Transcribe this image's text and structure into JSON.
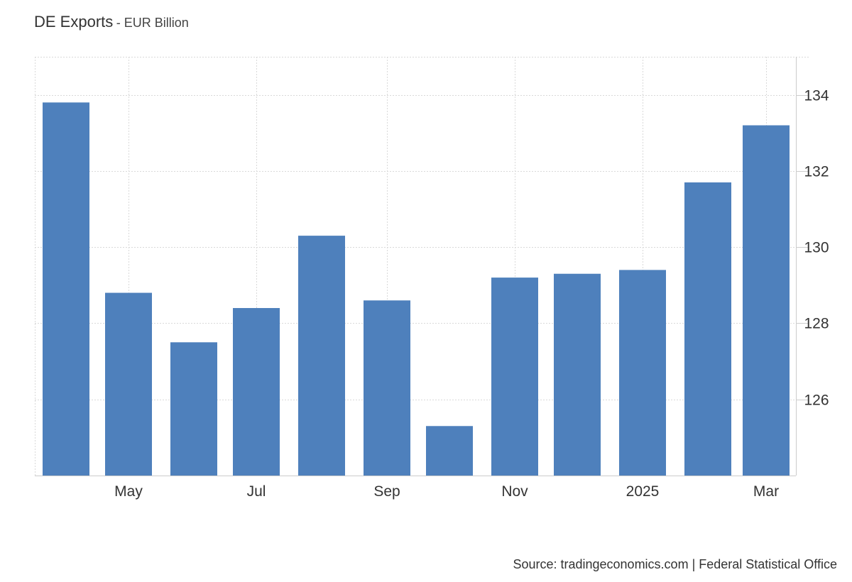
{
  "title": "DE Exports",
  "subtitle": "- EUR Billion",
  "source": "Source: tradingeconomics.com | Federal Statistical Office",
  "colors": {
    "bar": "#4e80bc",
    "grid": "#d9d9d9",
    "axis": "#cccccc",
    "text": "#333333"
  },
  "chart_data": {
    "type": "bar",
    "title": "DE Exports",
    "subtitle": "EUR Billion",
    "categories": [
      "Apr 2024",
      "May 2024",
      "Jun 2024",
      "Jul 2024",
      "Aug 2024",
      "Sep 2024",
      "Oct 2024",
      "Nov 2024",
      "Dec 2024",
      "Jan 2025",
      "Feb 2025",
      "Mar 2025"
    ],
    "values": [
      133.8,
      128.8,
      127.5,
      128.4,
      130.3,
      128.6,
      125.3,
      129.2,
      129.3,
      129.4,
      131.7,
      133.2
    ],
    "x_tick_labels": [
      {
        "index": 1,
        "label": "May"
      },
      {
        "index": 3,
        "label": "Jul"
      },
      {
        "index": 5,
        "label": "Sep"
      },
      {
        "index": 7,
        "label": "Nov"
      },
      {
        "index": 9,
        "label": "2025"
      },
      {
        "index": 11,
        "label": "Mar"
      }
    ],
    "y_ticks": [
      126,
      128,
      130,
      132,
      134
    ],
    "ylim": [
      124.0,
      135.0
    ],
    "y_axis_side": "right",
    "grid": true,
    "legend": "none"
  }
}
